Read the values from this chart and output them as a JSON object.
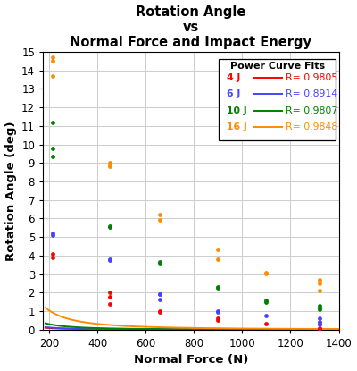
{
  "title": "Rotation Angle\nvs\nNormal Force and Impact Energy",
  "xlabel": "Normal Force (N)",
  "ylabel": "Rotation Angle (deg)",
  "xlim": [
    175,
    1400
  ],
  "ylim": [
    0,
    15
  ],
  "yticks": [
    0,
    1,
    2,
    3,
    4,
    5,
    6,
    7,
    8,
    9,
    10,
    11,
    12,
    13,
    14,
    15
  ],
  "xticks": [
    200,
    400,
    600,
    800,
    1000,
    1200,
    1400
  ],
  "series": [
    {
      "label": "4 J",
      "color": "#ff0000",
      "R": "0.9805",
      "scatter_x": [
        215,
        215,
        450,
        450,
        450,
        660,
        660,
        900,
        900,
        1100,
        1320,
        1320,
        1320
      ],
      "scatter_y": [
        4.1,
        3.9,
        2.0,
        1.8,
        1.4,
        1.0,
        0.95,
        0.6,
        0.5,
        0.35,
        0.4,
        0.1,
        0.05
      ],
      "curve_a": 950.0,
      "curve_b": -1.75
    },
    {
      "label": "6 J",
      "color": "#4444ff",
      "R": "0.8914",
      "scatter_x": [
        215,
        215,
        450,
        450,
        660,
        660,
        660,
        900,
        900,
        1100,
        1320,
        1320,
        1320
      ],
      "scatter_y": [
        5.1,
        5.2,
        3.75,
        3.8,
        1.65,
        1.9,
        1.9,
        1.0,
        0.95,
        0.75,
        0.6,
        0.45,
        0.3
      ],
      "curve_a": 2200.0,
      "curve_b": -1.85
    },
    {
      "label": "10 J",
      "color": "#008000",
      "R": "0.9807",
      "scatter_x": [
        215,
        215,
        215,
        450,
        450,
        660,
        660,
        900,
        900,
        1100,
        1100,
        1320,
        1320,
        1320
      ],
      "scatter_y": [
        9.8,
        9.35,
        11.2,
        5.6,
        5.55,
        3.65,
        3.6,
        2.3,
        2.25,
        1.5,
        1.6,
        1.3,
        1.2,
        1.1
      ],
      "curve_a": 3800.0,
      "curve_b": -1.78
    },
    {
      "label": "16 J",
      "color": "#ff8c00",
      "R": "0.9848",
      "scatter_x": [
        215,
        215,
        215,
        450,
        450,
        450,
        660,
        660,
        900,
        900,
        1100,
        1100,
        1320,
        1320,
        1320
      ],
      "scatter_y": [
        13.7,
        14.5,
        14.7,
        8.8,
        8.85,
        9.0,
        6.2,
        5.95,
        4.35,
        3.8,
        3.05,
        3.1,
        2.7,
        2.5,
        2.1
      ],
      "curve_a": 9500.0,
      "curve_b": -1.72
    }
  ],
  "legend_title": "Power Curve Fits",
  "legend_entries": [
    {
      "label": "4 J",
      "color": "#ff0000",
      "R": "R= 0.9805"
    },
    {
      "label": "6 J",
      "color": "#4444ff",
      "R": "R= 0.8914"
    },
    {
      "label": "10 J",
      "color": "#008000",
      "R": "R= 0.9807"
    },
    {
      "label": "16 J",
      "color": "#ff8c00",
      "R": "R= 0.9848"
    }
  ],
  "bg_color": "#ffffff",
  "grid_color": "#cccccc"
}
